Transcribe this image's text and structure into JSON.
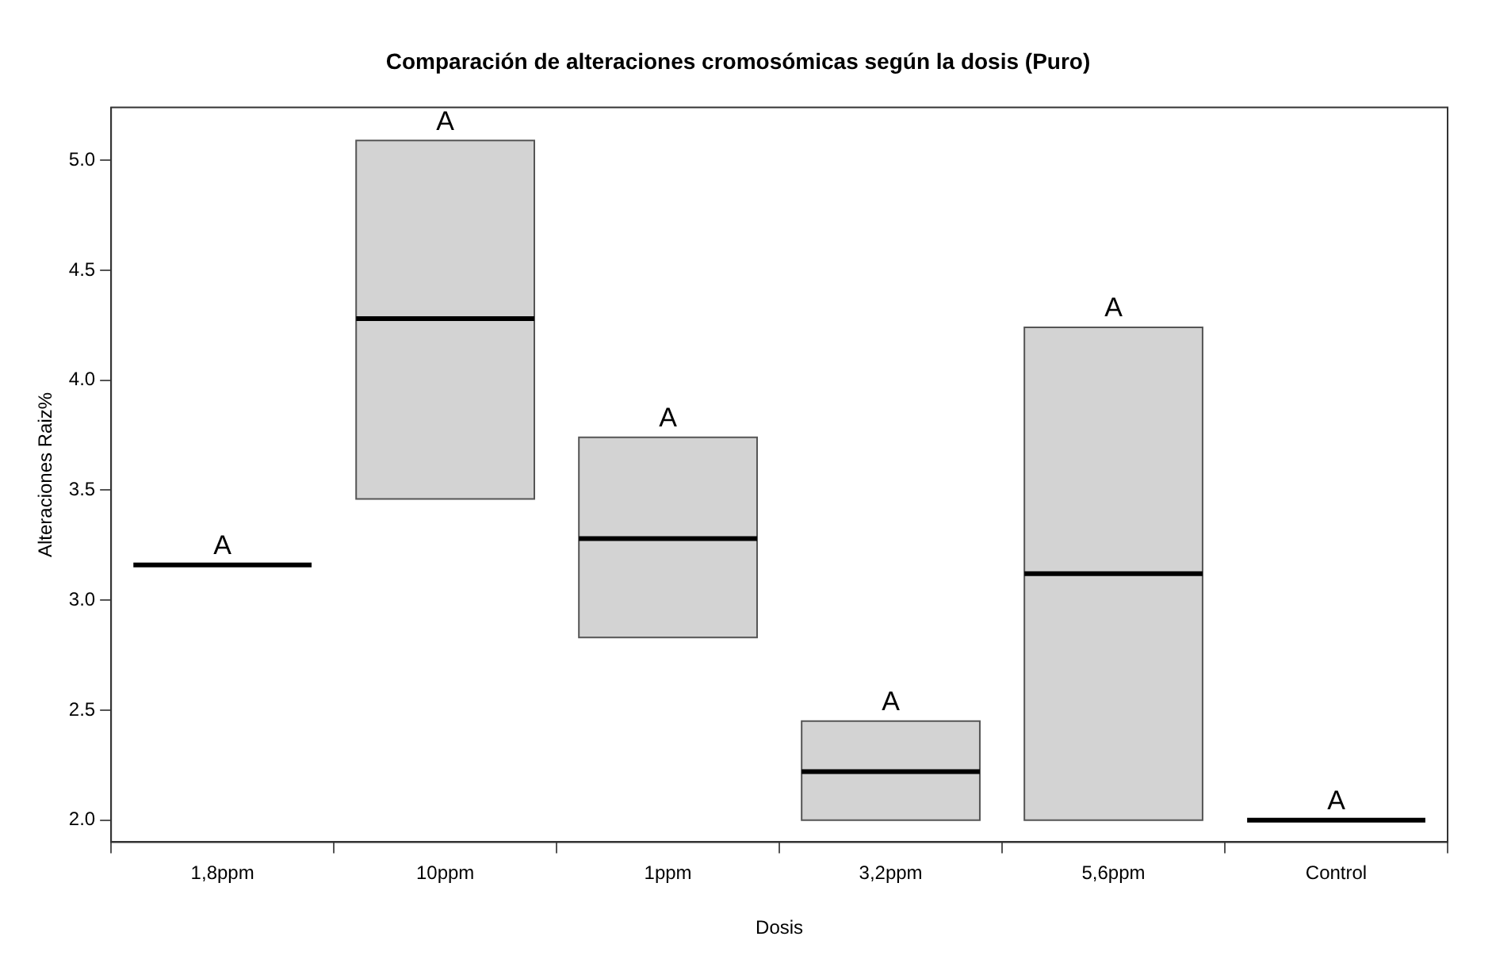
{
  "chart_data": {
    "type": "box",
    "title": "Comparación de alteraciones cromosómicas según la dosis (Puro)",
    "xlabel": "Dosis",
    "ylabel": "Alteraciones Raiz%",
    "categories": [
      "1,8ppm",
      "10ppm",
      "1ppm",
      "3,2ppm",
      "5,6ppm",
      "Control"
    ],
    "colors": [
      "#000000",
      "#d3d3d3",
      "#d3d3d3",
      "#d3d3d3",
      "#d3d3d3",
      "#000000"
    ],
    "boxes": [
      {
        "low": 3.16,
        "q1": 3.16,
        "median": 3.16,
        "q3": 3.16,
        "high": 3.16
      },
      {
        "low": 3.46,
        "q1": 3.46,
        "median": 4.28,
        "q3": 5.09,
        "high": 5.09
      },
      {
        "low": 2.83,
        "q1": 2.83,
        "median": 3.28,
        "q3": 3.74,
        "high": 3.74
      },
      {
        "low": 2.0,
        "q1": 2.0,
        "median": 2.22,
        "q3": 2.45,
        "high": 2.45
      },
      {
        "low": 2.0,
        "q1": 2.0,
        "median": 3.12,
        "q3": 4.24,
        "high": 4.24
      },
      {
        "low": 2.0,
        "q1": 2.0,
        "median": 2.0,
        "q3": 2.0,
        "high": 2.0
      }
    ],
    "ylim": [
      1.9,
      5.24
    ],
    "yticks": [
      {
        "value": 2,
        "label": "2.0"
      },
      {
        "value": 2.5,
        "label": "2.5"
      },
      {
        "value": 3,
        "label": "3.0"
      },
      {
        "value": 3.5,
        "label": "3.5"
      },
      {
        "value": 4,
        "label": "4.0"
      },
      {
        "value": 4.5,
        "label": "4.5"
      },
      {
        "value": 5,
        "label": "5.0"
      }
    ],
    "grid": false,
    "legend": false,
    "annotations": [
      {
        "text": "A",
        "x": "1,8ppm",
        "y": 3.16
      },
      {
        "text": "A",
        "x": "10ppm",
        "y": 5.09
      },
      {
        "text": "A",
        "x": "1ppm",
        "y": 3.74
      },
      {
        "text": "A",
        "x": "3,2ppm",
        "y": 2.45
      },
      {
        "text": "A",
        "x": "5,6ppm",
        "y": 4.24
      },
      {
        "text": "A",
        "x": "Control",
        "y": 2.0
      }
    ]
  }
}
